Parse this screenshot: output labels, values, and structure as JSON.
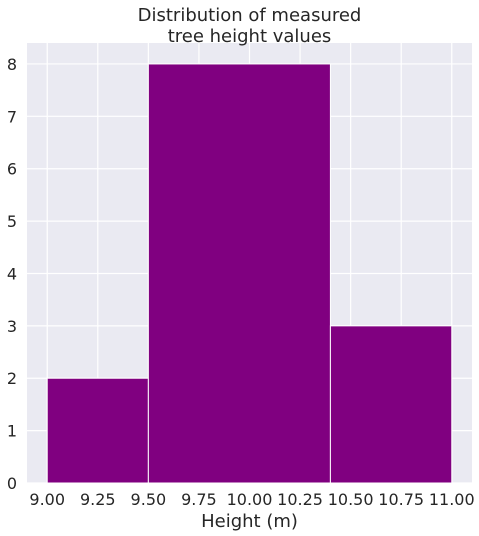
{
  "chart_data": {
    "type": "bar",
    "subtype": "histogram",
    "title_lines": [
      "Distribution of measured",
      "tree height values"
    ],
    "xlabel": "Height (m)",
    "ylabel": "",
    "bins": [
      {
        "start": 9.0,
        "end": 9.5,
        "count": 2
      },
      {
        "start": 9.5,
        "end": 10.4,
        "count": 8
      },
      {
        "start": 10.4,
        "end": 11.0,
        "count": 3
      }
    ],
    "xlim": [
      8.9,
      11.1
    ],
    "ylim": [
      0,
      8.4
    ],
    "xticks": [
      9.0,
      9.25,
      9.5,
      9.75,
      10.0,
      10.25,
      10.5,
      10.75,
      11.0
    ],
    "xtick_labels": [
      "9.00",
      "9.25",
      "9.50",
      "9.75",
      "10.00",
      "10.25",
      "10.50",
      "10.75",
      "11.00"
    ],
    "yticks": [
      0,
      1,
      2,
      3,
      4,
      5,
      6,
      7,
      8
    ],
    "ytick_labels": [
      "0",
      "1",
      "2",
      "3",
      "4",
      "5",
      "6",
      "7",
      "8"
    ],
    "grid": true,
    "colors": {
      "bar": "#800080",
      "plot_background": "#eaeaf2",
      "grid": "#ffffff",
      "bar_edge": "#ffffff"
    }
  }
}
